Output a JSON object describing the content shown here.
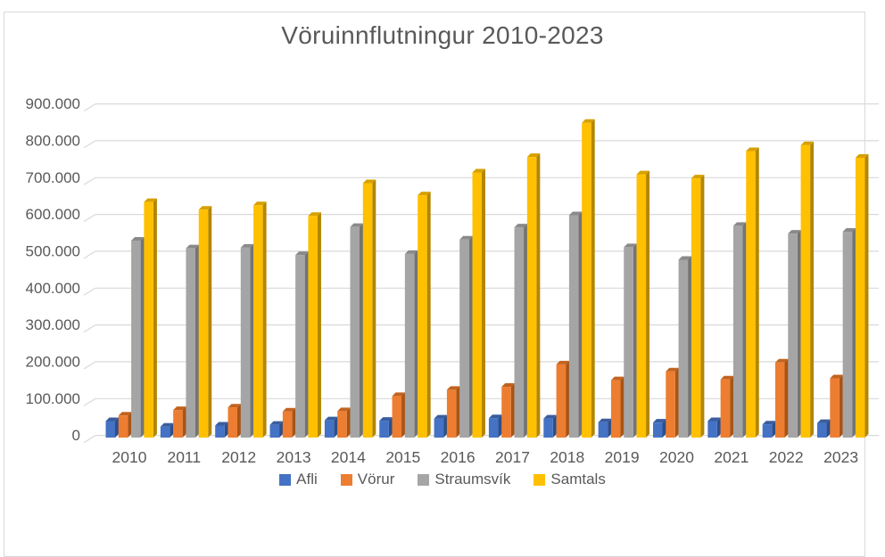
{
  "page": {
    "background": "#ffffff",
    "frame_border_color": "#d9d9d9"
  },
  "chart_data": {
    "type": "bar",
    "style": "3d-clustered-column",
    "title": "Vöruinnflutningur 2010-2023",
    "text_color": "#595959",
    "grid_color": "#d9d9d9",
    "grid": true,
    "legend_position": "bottom",
    "categories": [
      "2010",
      "2011",
      "2012",
      "2013",
      "2014",
      "2015",
      "2016",
      "2017",
      "2018",
      "2019",
      "2020",
      "2021",
      "2022",
      "2023"
    ],
    "series": [
      {
        "name": "Afli",
        "color": "#4472C4",
        "side_color": "#2e4f88",
        "top_color": "#395d9e",
        "values": [
          45000,
          30000,
          33000,
          35000,
          47000,
          46000,
          52000,
          53000,
          52000,
          42000,
          41000,
          45000,
          36000,
          40000
        ]
      },
      {
        "name": "Vörur",
        "color": "#ED7D31",
        "side_color": "#a85415",
        "top_color": "#c2631f",
        "values": [
          60000,
          75000,
          82000,
          71000,
          72000,
          113000,
          130000,
          138000,
          199000,
          156000,
          180000,
          158000,
          204000,
          161000
        ]
      },
      {
        "name": "Straumsvík",
        "color": "#A5A5A5",
        "side_color": "#747474",
        "top_color": "#8a8a8a",
        "values": [
          535000,
          514000,
          516000,
          496000,
          572000,
          499000,
          538000,
          571000,
          604000,
          517000,
          483000,
          575000,
          554000,
          559000
        ]
      },
      {
        "name": "Samtals",
        "color": "#FFC000",
        "side_color": "#b38600",
        "top_color": "#d6a100",
        "values": [
          640000,
          619000,
          631000,
          602000,
          691000,
          658000,
          720000,
          762000,
          855000,
          715000,
          704000,
          778000,
          794000,
          760000
        ]
      }
    ],
    "y_axis": {
      "min": 0,
      "max": 900000,
      "step": 100000,
      "tick_labels": [
        "900.000",
        "800.000",
        "700.000",
        "600.000",
        "500.000",
        "400.000",
        "300.000",
        "200.000",
        "100.000",
        "0"
      ]
    }
  }
}
